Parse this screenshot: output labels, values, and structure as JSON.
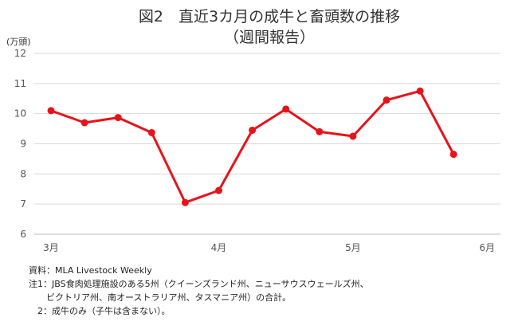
{
  "title_line1": "図2　直近3カ月の成牛と畜頭数の推移",
  "title_line2": "（週間報告）",
  "unit_label": "(万頭)",
  "notes": [
    "資料：MLA Livestock Weekly",
    "注1：JBS食肉処理施設のある5州（クイーンズランド州、ニューサウスウェールズ州、",
    "　　ビクトリア州、南オーストラリア州、タスマニア州）の合計。",
    "　2：成牛のみ（子牛は含まない）。"
  ],
  "chart_data": {
    "type": "line",
    "title": "図2　直近3カ月の成牛と畜頭数の推移（週間報告）",
    "ylabel": "(万頭)",
    "ylim": [
      6,
      12
    ],
    "yticks": [
      6,
      7,
      8,
      9,
      10,
      11,
      12
    ],
    "grid": true,
    "legend": "none",
    "x_tick_labels": [
      "3月",
      "4月",
      "5月",
      "6月"
    ],
    "x_tick_week_index": [
      0,
      5,
      9,
      13
    ],
    "series": [
      {
        "color": "#e8131a",
        "values": [
          10.1,
          9.7,
          9.87,
          9.37,
          7.05,
          7.45,
          9.45,
          10.15,
          9.4,
          9.25,
          10.45,
          10.75,
          8.65
        ]
      }
    ]
  }
}
